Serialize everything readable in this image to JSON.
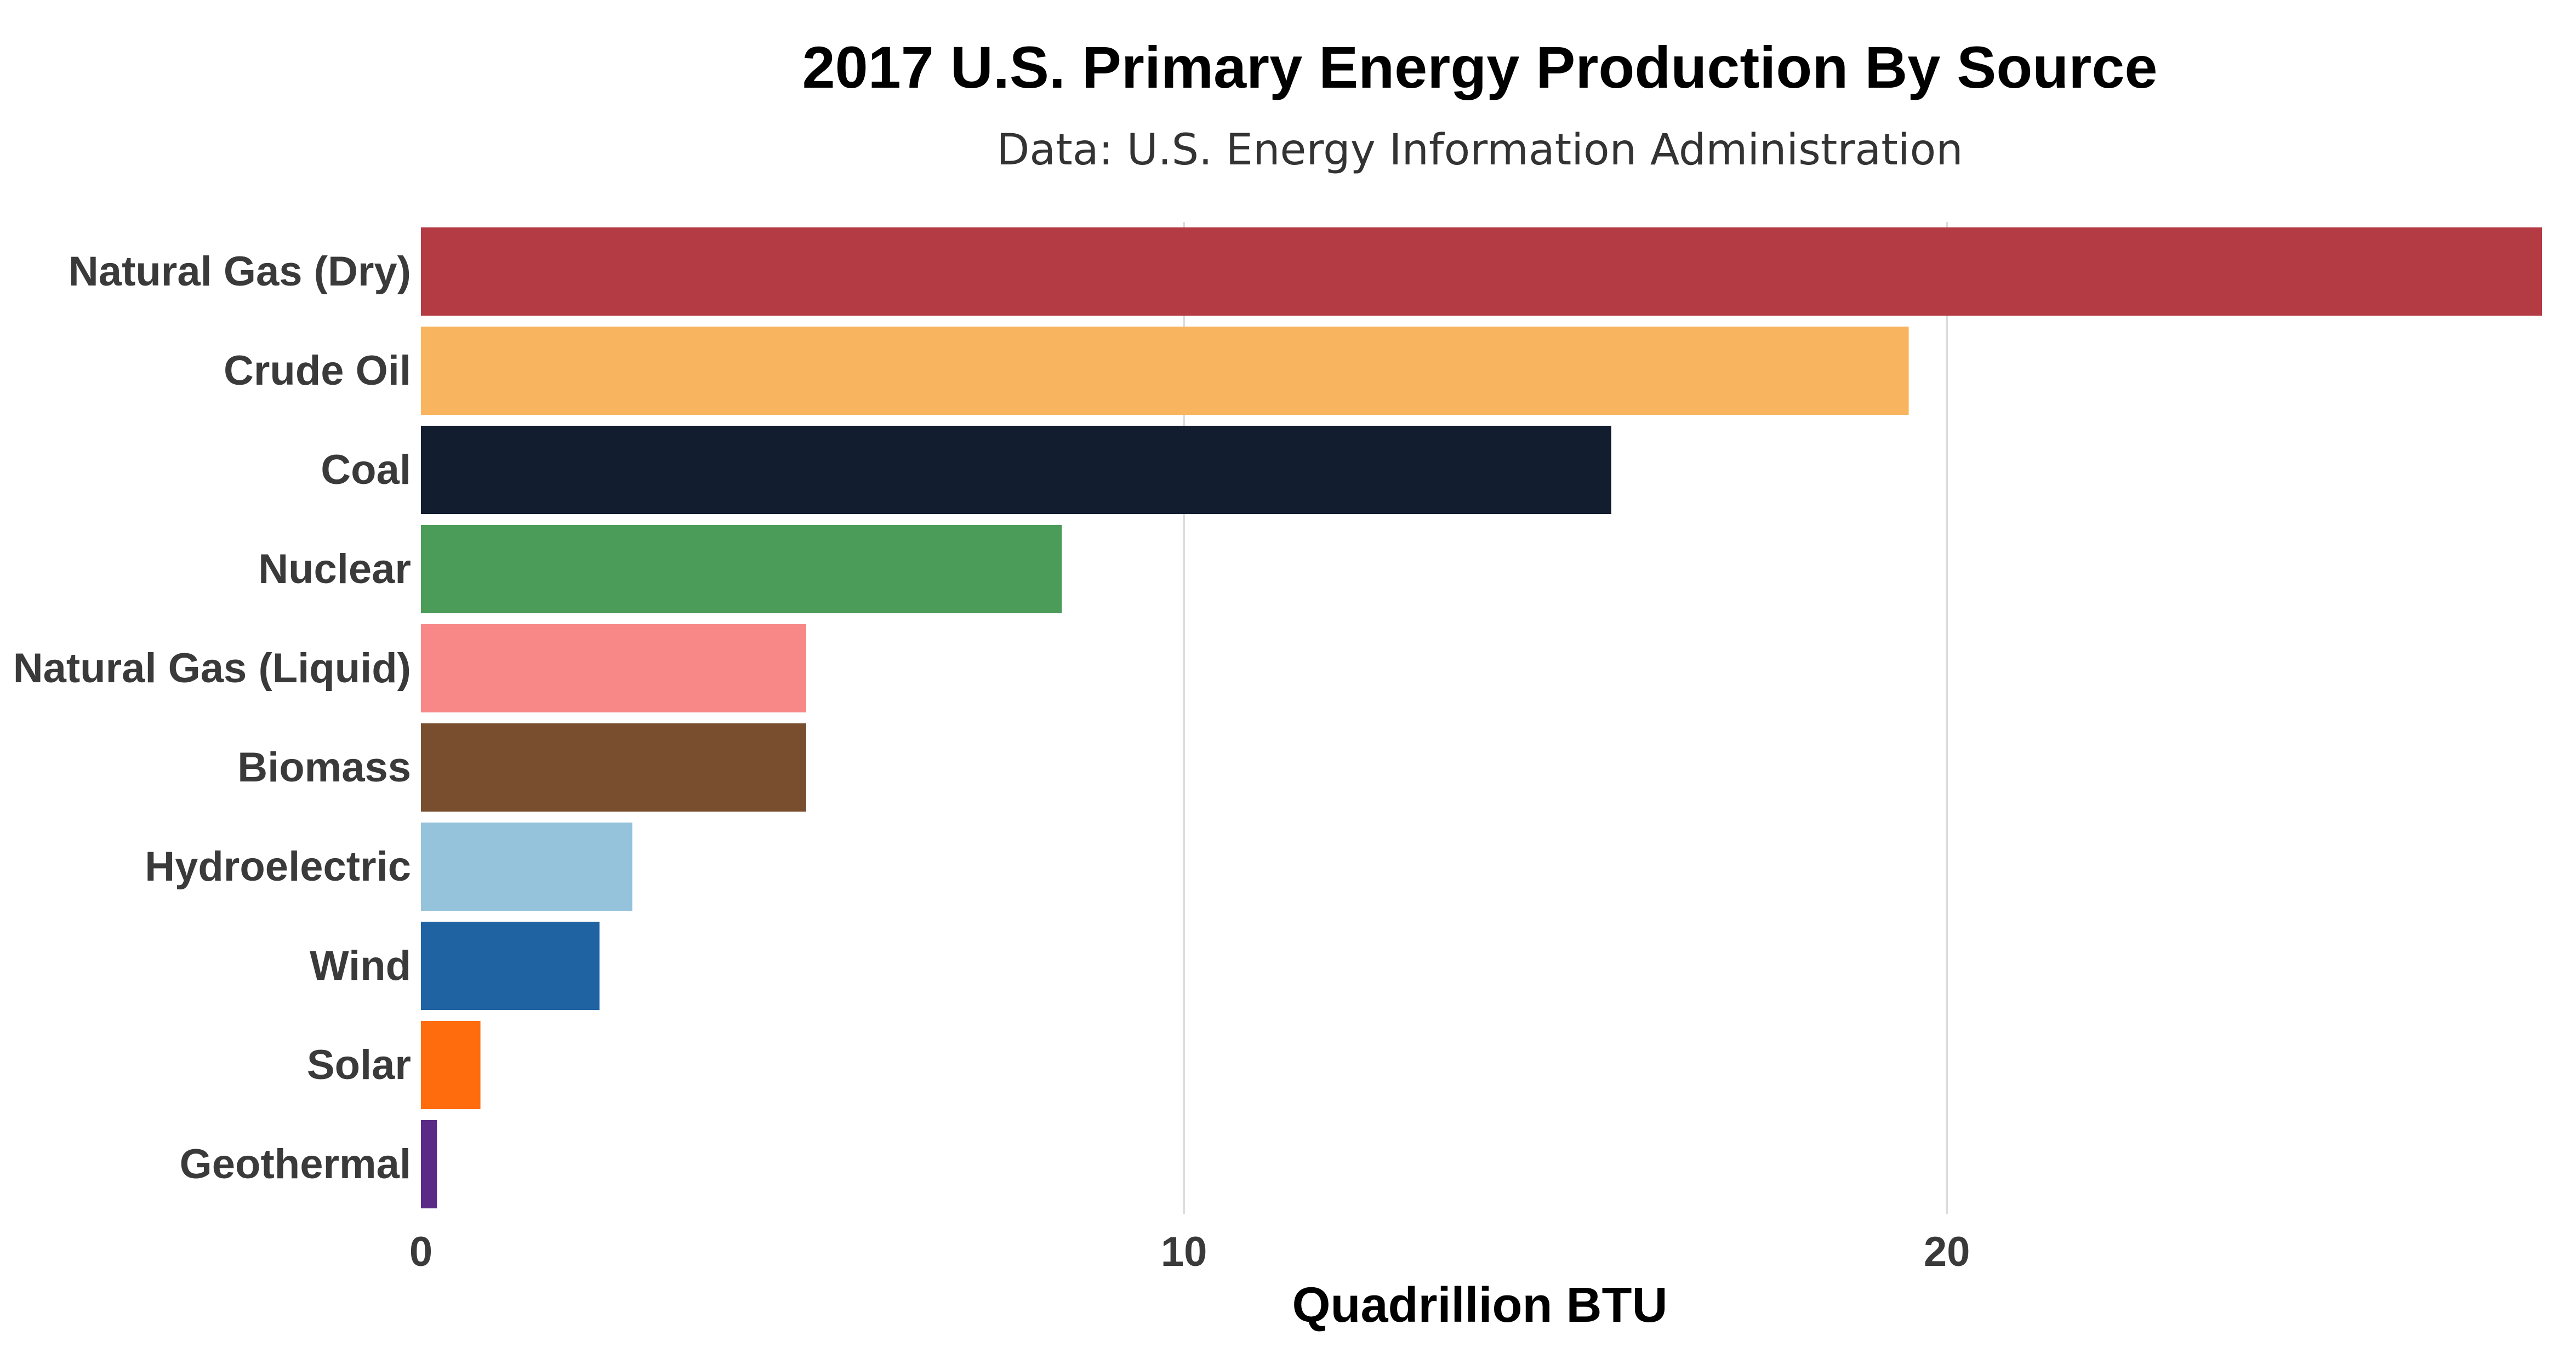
{
  "chart_data": {
    "type": "bar",
    "orientation": "horizontal",
    "title": "2017 U.S. Primary Energy Production By Source",
    "subtitle": "Data: U.S. Energy Information Administration",
    "xlabel": "Quadrillion BTU",
    "ylabel": "",
    "xlim": [
      0,
      27.8
    ],
    "xticks": [
      0,
      10,
      20
    ],
    "grid": true,
    "legend": "none",
    "categories": [
      "Natural Gas (Dry)",
      "Crude Oil",
      "Coal",
      "Nuclear",
      "Natural Gas (Liquid)",
      "Biomass",
      "Hydroelectric",
      "Wind",
      "Solar",
      "Geothermal"
    ],
    "values": [
      27.8,
      19.5,
      15.6,
      8.4,
      5.05,
      5.05,
      2.77,
      2.34,
      0.78,
      0.21
    ],
    "colors": [
      "#b43a43",
      "#f9b460",
      "#121d30",
      "#4a9c58",
      "#f88888",
      "#794e2f",
      "#96c3dc",
      "#1f63a2",
      "#fe6c0e",
      "#5b2a86"
    ]
  }
}
